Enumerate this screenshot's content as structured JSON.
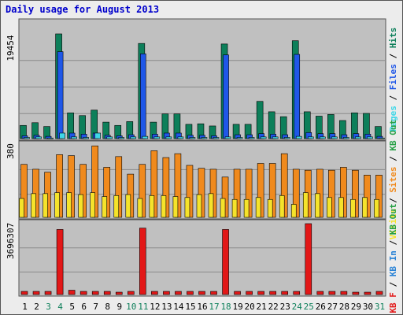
{
  "title": "Daily usage for August 2013",
  "colors": {
    "hits": "#0d7f5a",
    "files": "#1f57e8",
    "pages": "#3fd7e8",
    "visits": "#f5e32b",
    "sites": "#f08a1d",
    "kb_in": "#2a83d6",
    "kb_out": "#27a046",
    "kb_f": "#e21717",
    "weekend": "#0d7f5a"
  },
  "chart_data": [
    {
      "type": "bar",
      "title": "",
      "ylim": [
        0,
        19454
      ],
      "ymax_label": "19454",
      "legend": [
        "Pages",
        "Files",
        "Hits"
      ],
      "categories": [
        "1",
        "2",
        "3",
        "4",
        "5",
        "6",
        "7",
        "8",
        "9",
        "10",
        "11",
        "12",
        "13",
        "14",
        "15",
        "16",
        "17",
        "18",
        "19",
        "20",
        "21",
        "22",
        "23",
        "24",
        "25",
        "26",
        "27",
        "28",
        "29",
        "30",
        "31"
      ],
      "series": [
        {
          "name": "Hits",
          "values": [
            2700,
            3200,
            2500,
            19454,
            5000,
            4500,
            5500,
            3300,
            2700,
            3400,
            17700,
            3300,
            4800,
            4800,
            2900,
            3000,
            2600,
            17600,
            2900,
            2900,
            7100,
            5200,
            4300,
            18200,
            5200,
            4400,
            4700,
            3600,
            5000,
            4900,
            2500
          ]
        },
        {
          "name": "Files",
          "values": [
            800,
            900,
            700,
            16200,
            1300,
            1100,
            1300,
            900,
            800,
            1000,
            15800,
            1100,
            1300,
            1300,
            900,
            900,
            800,
            15600,
            1000,
            1000,
            1200,
            1100,
            1000,
            15700,
            1400,
            1200,
            1200,
            1000,
            1200,
            1100,
            700
          ]
        },
        {
          "name": "Pages",
          "values": [
            500,
            600,
            400,
            1300,
            600,
            500,
            1300,
            600,
            500,
            600,
            700,
            600,
            600,
            600,
            500,
            500,
            500,
            600,
            500,
            500,
            600,
            600,
            500,
            700,
            600,
            600,
            600,
            500,
            600,
            600,
            400
          ]
        }
      ]
    },
    {
      "type": "bar",
      "title": "",
      "ylim": [
        0,
        380
      ],
      "ymax_label": "380",
      "legend": [
        "Visits",
        "Sites",
        "KB Out"
      ],
      "categories": [
        "1",
        "2",
        "3",
        "4",
        "5",
        "6",
        "7",
        "8",
        "9",
        "10",
        "11",
        "12",
        "13",
        "14",
        "15",
        "16",
        "17",
        "18",
        "19",
        "20",
        "21",
        "22",
        "23",
        "24",
        "25",
        "26",
        "27",
        "28",
        "29",
        "30",
        "31"
      ],
      "series": [
        {
          "name": "Sites",
          "values": [
            280,
            255,
            240,
            330,
            325,
            280,
            375,
            265,
            320,
            230,
            280,
            350,
            315,
            335,
            275,
            260,
            255,
            215,
            255,
            255,
            285,
            285,
            335,
            255,
            250,
            255,
            250,
            265,
            250,
            225,
            225
          ]
        },
        {
          "name": "Visits",
          "values": [
            105,
            130,
            130,
            135,
            135,
            125,
            135,
            115,
            120,
            125,
            105,
            120,
            120,
            115,
            110,
            125,
            130,
            105,
            100,
            100,
            110,
            100,
            120,
            75,
            135,
            130,
            110,
            110,
            100,
            110,
            100
          ]
        }
      ]
    },
    {
      "type": "bar",
      "title": "",
      "ylim": [
        0,
        3696307
      ],
      "ymax_label": "3696307",
      "legend": [
        "KB F",
        "KB In",
        "KB Out"
      ],
      "categories": [
        "1",
        "2",
        "3",
        "4",
        "5",
        "6",
        "7",
        "8",
        "9",
        "10",
        "11",
        "12",
        "13",
        "14",
        "15",
        "16",
        "17",
        "18",
        "19",
        "20",
        "21",
        "22",
        "23",
        "24",
        "25",
        "26",
        "27",
        "28",
        "29",
        "30",
        "31"
      ],
      "series": [
        {
          "name": "KB F",
          "values": [
            240000,
            240000,
            240000,
            3400000,
            300000,
            240000,
            240000,
            240000,
            200000,
            240000,
            3470000,
            240000,
            240000,
            240000,
            240000,
            240000,
            240000,
            3400000,
            240000,
            240000,
            240000,
            240000,
            240000,
            240000,
            3696307,
            240000,
            240000,
            240000,
            200000,
            200000,
            240000
          ]
        }
      ]
    }
  ],
  "weekend_days": [
    "3",
    "4",
    "10",
    "11",
    "17",
    "18",
    "24",
    "25",
    "31"
  ]
}
